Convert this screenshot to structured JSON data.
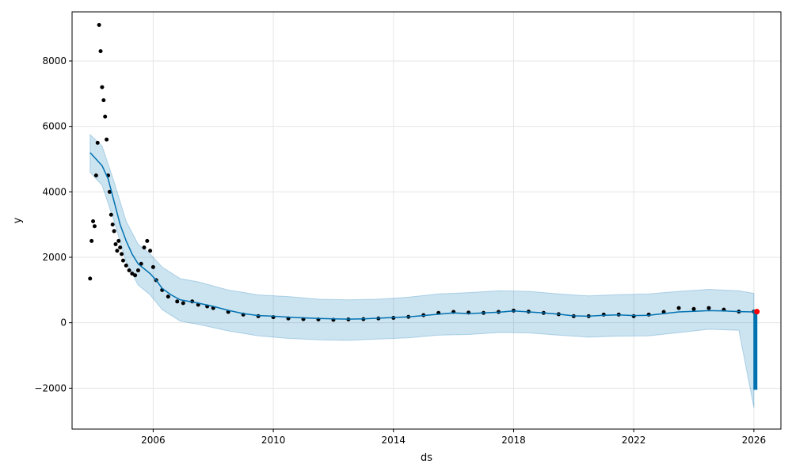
{
  "chart_data": {
    "type": "line",
    "title": "",
    "xlabel": "ds",
    "ylabel": "y",
    "grid": true,
    "xlim": [
      2003.3,
      2026.9
    ],
    "ylim": [
      -3250,
      9500
    ],
    "x_ticks": [
      2006,
      2010,
      2014,
      2018,
      2022,
      2026
    ],
    "x_tick_labels": [
      "2006",
      "2010",
      "2014",
      "2018",
      "2022",
      "2026"
    ],
    "y_ticks": [
      -2000,
      0,
      2000,
      4000,
      6000,
      8000
    ],
    "y_tick_labels": [
      "−2000",
      "0",
      "2000",
      "4000",
      "6000",
      "8000"
    ],
    "colors": {
      "observed": "#000000",
      "forecast": "#0072B2",
      "uncertainty": "#0072B2",
      "highlight": "#ff0000"
    },
    "series": [
      {
        "type": "scatter",
        "x": [
          2003.9,
          2003.95,
          2004.0,
          2004.05,
          2004.1,
          2004.15,
          2004.2,
          2004.25,
          2004.3,
          2004.35,
          2004.4,
          2004.45,
          2004.5,
          2004.55,
          2004.6,
          2004.65,
          2004.7,
          2004.75,
          2004.8,
          2004.85,
          2004.9,
          2004.95,
          2005.0,
          2005.1,
          2005.2,
          2005.3,
          2005.4,
          2005.5,
          2005.6,
          2005.7,
          2005.8,
          2005.9,
          2006.0,
          2006.1,
          2006.3,
          2006.5,
          2006.8,
          2007.0,
          2007.3,
          2007.5,
          2007.8,
          2008.0,
          2008.5,
          2009.0,
          2009.5,
          2010.0,
          2010.5,
          2011.0,
          2011.5,
          2012.0,
          2012.5,
          2013.0,
          2013.5,
          2014.0,
          2014.5,
          2015.0,
          2015.5,
          2016.0,
          2016.5,
          2017.0,
          2017.5,
          2018.0,
          2018.5,
          2019.0,
          2019.5,
          2020.0,
          2020.5,
          2021.0,
          2021.5,
          2022.0,
          2022.5,
          2023.0,
          2023.5,
          2024.0,
          2024.5,
          2025.0,
          2025.5,
          2026.0
        ],
        "y": [
          1350,
          2500,
          3100,
          2950,
          4500,
          5500,
          9100,
          8300,
          7200,
          6800,
          6300,
          5600,
          4500,
          4000,
          3300,
          3000,
          2800,
          2400,
          2200,
          2500,
          2300,
          2100,
          1900,
          1750,
          1600,
          1500,
          1450,
          1600,
          1800,
          2300,
          2500,
          2200,
          1700,
          1300,
          1000,
          800,
          650,
          600,
          650,
          550,
          500,
          450,
          330,
          250,
          200,
          170,
          130,
          110,
          100,
          90,
          100,
          110,
          130,
          150,
          180,
          230,
          300,
          330,
          310,
          300,
          330,
          370,
          340,
          300,
          260,
          200,
          200,
          250,
          250,
          200,
          250,
          330,
          450,
          420,
          450,
          400,
          340,
          340
        ]
      },
      {
        "type": "line",
        "x": [
          2003.9,
          2004.1,
          2004.3,
          2004.5,
          2004.7,
          2004.9,
          2005.1,
          2005.3,
          2005.5,
          2005.7,
          2005.9,
          2006.1,
          2006.3,
          2006.6,
          2006.9,
          2007.2,
          2007.5,
          2008.0,
          2008.5,
          2009.0,
          2009.5,
          2010.0,
          2010.5,
          2011.0,
          2011.5,
          2012.0,
          2012.5,
          2013.0,
          2013.5,
          2014.0,
          2014.5,
          2015.0,
          2015.5,
          2016.0,
          2016.5,
          2017.0,
          2017.5,
          2018.0,
          2018.5,
          2019.0,
          2019.5,
          2020.0,
          2020.5,
          2021.0,
          2021.5,
          2022.0,
          2022.5,
          2023.0,
          2023.5,
          2024.0,
          2024.5,
          2025.0,
          2025.5,
          2026.0
        ],
        "y": [
          5200,
          5000,
          4800,
          4400,
          3700,
          3000,
          2500,
          2100,
          1800,
          1650,
          1500,
          1300,
          1050,
          850,
          700,
          650,
          600,
          500,
          380,
          280,
          220,
          200,
          170,
          150,
          130,
          120,
          110,
          120,
          140,
          160,
          180,
          220,
          260,
          300,
          280,
          300,
          320,
          360,
          330,
          300,
          260,
          210,
          200,
          230,
          240,
          220,
          230,
          280,
          330,
          350,
          370,
          360,
          340,
          330
        ]
      },
      {
        "type": "band",
        "x": [
          2003.9,
          2004.3,
          2004.7,
          2005.1,
          2005.5,
          2005.9,
          2006.3,
          2006.9,
          2007.5,
          2008.5,
          2009.5,
          2010.5,
          2011.5,
          2012.5,
          2013.5,
          2014.5,
          2015.5,
          2016.5,
          2017.5,
          2018.5,
          2019.5,
          2020.5,
          2021.5,
          2022.5,
          2023.5,
          2024.5,
          2025.5,
          2026.0
        ],
        "lower": [
          4600,
          4200,
          3100,
          1850,
          1150,
          850,
          400,
          50,
          -50,
          -250,
          -400,
          -480,
          -520,
          -540,
          -500,
          -460,
          -380,
          -360,
          -300,
          -310,
          -380,
          -440,
          -410,
          -400,
          -300,
          -200,
          -230,
          -2600
        ],
        "upper": [
          5750,
          5400,
          4300,
          3100,
          2400,
          2100,
          1700,
          1350,
          1250,
          1000,
          850,
          800,
          720,
          700,
          720,
          780,
          880,
          920,
          980,
          960,
          880,
          820,
          860,
          880,
          960,
          1020,
          980,
          900
        ]
      },
      {
        "type": "line",
        "x": [
          2026.05,
          2026.05
        ],
        "y": [
          400,
          -2050
        ]
      }
    ],
    "highlight_point": {
      "x": 2026.1,
      "y": 340
    }
  }
}
